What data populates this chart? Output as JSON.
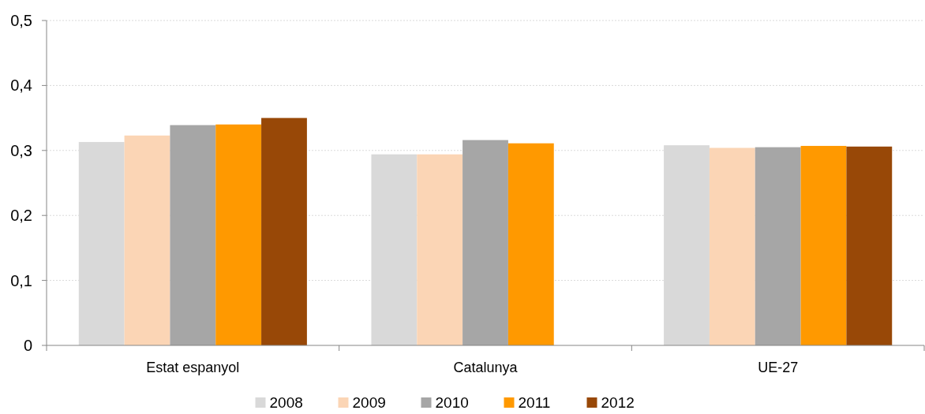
{
  "chart_data": {
    "type": "bar",
    "categories": [
      "Estat espanyol",
      "Catalunya",
      "UE-27"
    ],
    "series": [
      {
        "name": "2008",
        "color": "#d9d9d9",
        "values": [
          0.313,
          0.294,
          0.308
        ]
      },
      {
        "name": "2009",
        "color": "#fbd5b5",
        "values": [
          0.323,
          0.294,
          0.304
        ]
      },
      {
        "name": "2010",
        "color": "#a6a6a6",
        "values": [
          0.339,
          0.316,
          0.305
        ]
      },
      {
        "name": "2011",
        "color": "#ff9900",
        "values": [
          0.34,
          0.311,
          0.307
        ]
      },
      {
        "name": "2012",
        "color": "#984807",
        "values": [
          0.35,
          null,
          0.306
        ]
      }
    ],
    "ylim": [
      0,
      0.5
    ],
    "yticks": [
      {
        "value": 0,
        "label": "0"
      },
      {
        "value": 0.1,
        "label": "0,1"
      },
      {
        "value": 0.2,
        "label": "0,2"
      },
      {
        "value": 0.3,
        "label": "0,3"
      },
      {
        "value": 0.4,
        "label": "0,4"
      },
      {
        "value": 0.5,
        "label": "0,5"
      }
    ],
    "grid": "y",
    "legend": "bottom"
  }
}
